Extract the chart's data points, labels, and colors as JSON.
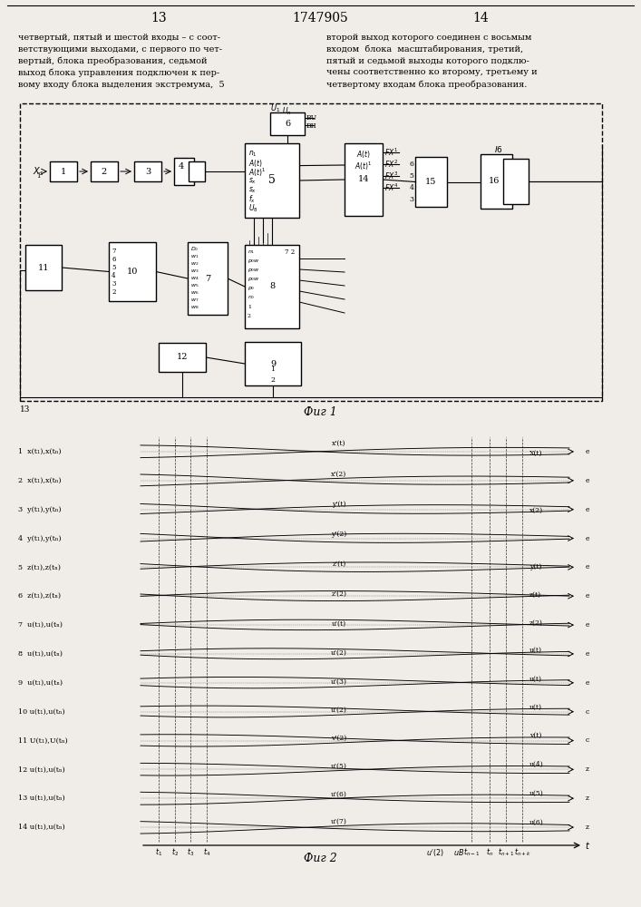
{
  "page_width": 7.07,
  "page_height": 10.0,
  "bg_color": "#f0ede8",
  "header_page_left": "13",
  "header_title": "1747905",
  "header_page_right": "14",
  "text_left_lines": [
    "четвертый, пятый и шестой входы – с соот-",
    "ветствующими выходами, с первого по чет-",
    "вертый, блока преобразования, седьмой",
    "выход блока управления подключен к пер-",
    "вому входу блока выделения экстремума,  5"
  ],
  "text_right_lines": [
    "второй выход которого соединен с восьмым",
    "входом  блока  масштабирования, третий,",
    "пятый и седьмой выходы которого подклю-",
    "чены соответственно ко второму, третьему и",
    "четвертому входам блока преобразования."
  ],
  "fig1_caption": "Фиг 1",
  "fig2_caption": "Фиг 2",
  "fig2_row_labels": [
    "1  x(t₁),x(tₙ)",
    "2  x(t₁),x(tₙ)",
    "3  y(t₁),y(tₙ)",
    "4  y(t₁),y(tₙ)",
    "5  z(t₁),z(tₙ)",
    "6  z(t₁),z(tₙ)",
    "7  u(t₁),u(tₙ)",
    "8  u(t₁),u(tₙ)",
    "9  u(t₁),u(tₙ)",
    "10 u(t₁),u(tₙ)",
    "11 U(t₁),U(tₙ)",
    "12 u(t₁),u(tₙ)",
    "13 u(t₁),u(tₙ)",
    "14 u(t₁),u(tₙ)"
  ],
  "fig2_mid_labels": [
    "x'(t)",
    "x'(2)",
    "y'(t)",
    "y'(2)",
    "z'(t)",
    "z'(2)",
    "u'(t)",
    "u'(2)",
    "u'(3)",
    "u'(2)",
    "v'(2)",
    "u'(5)",
    "u'(6)",
    "u'(7)"
  ],
  "fig2_right_labels": [
    "X(t)",
    "",
    "x(2)",
    "",
    "y(t)",
    "z(t)",
    "z(2)",
    "u(t)",
    "u(t)",
    "u(t)",
    "v(t)",
    "u(4)",
    "u(5)",
    "u(6)"
  ],
  "fig2_right2_labels": [
    "e",
    "e",
    "e",
    "e",
    "e",
    "e",
    "e",
    "e",
    "e",
    "c",
    "c",
    "z",
    "z",
    "z"
  ]
}
